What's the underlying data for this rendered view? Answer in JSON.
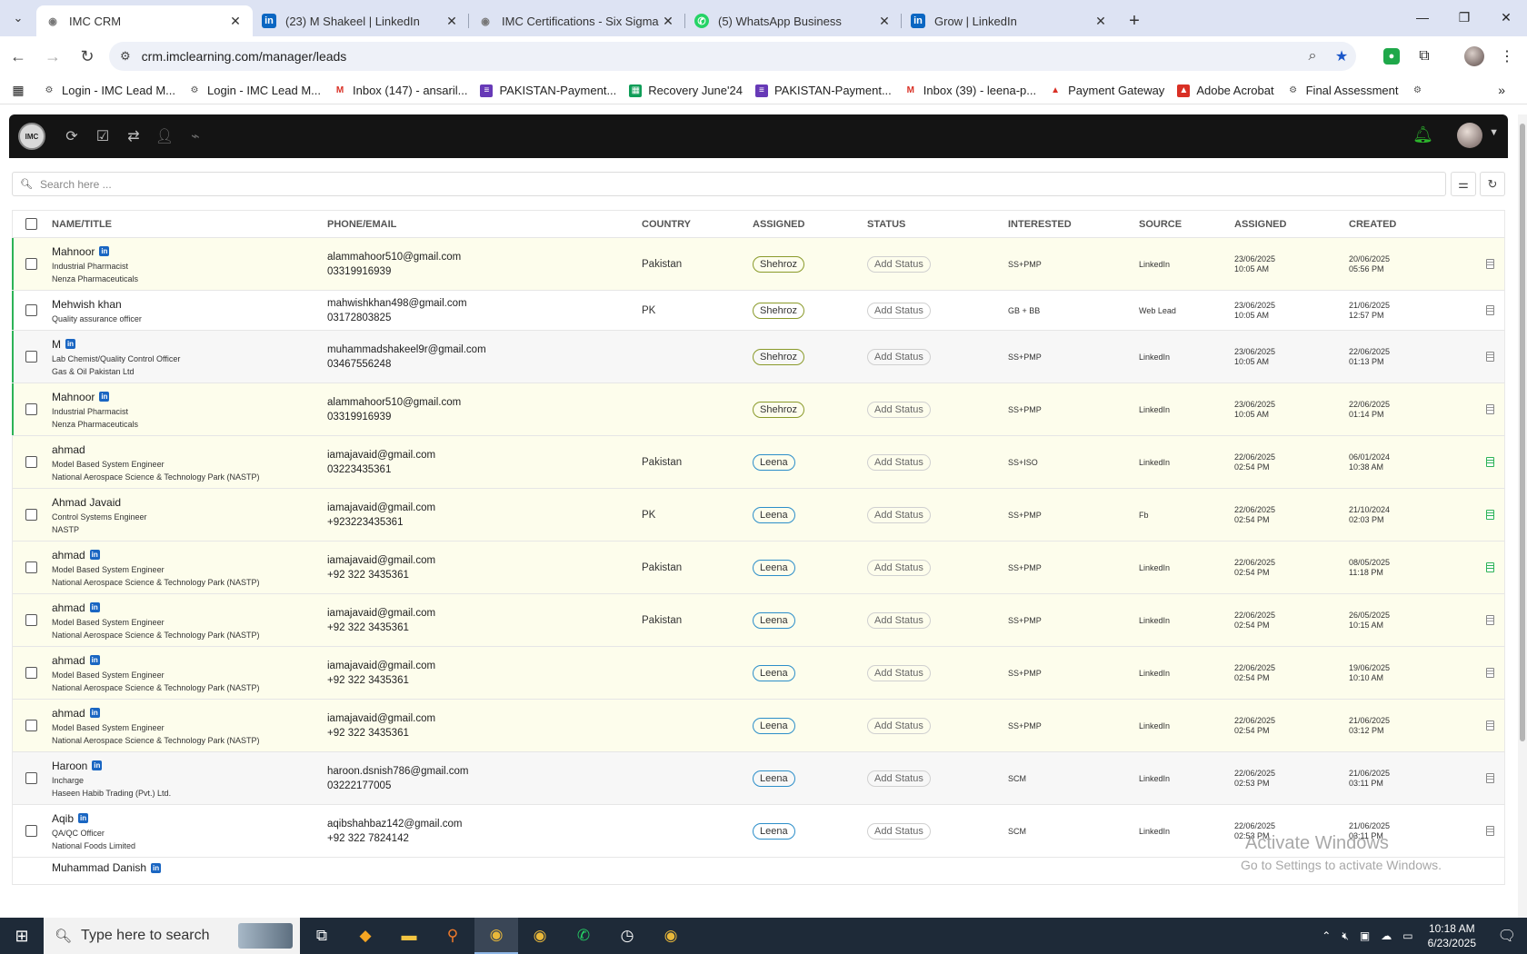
{
  "browser": {
    "tabs": [
      {
        "title": "IMC CRM",
        "icon": "imc-icon",
        "active": true
      },
      {
        "title": "(23) M Shakeel | LinkedIn",
        "icon": "linkedin-icon",
        "active": false
      },
      {
        "title": "IMC Certifications - Six Sigma G",
        "icon": "imc-icon",
        "active": false
      },
      {
        "title": "(5) WhatsApp Business",
        "icon": "whatsapp-icon",
        "active": false
      },
      {
        "title": "Grow | LinkedIn",
        "icon": "linkedin-icon",
        "active": false
      }
    ],
    "url": "crm.imclearning.com/manager/leads",
    "bookmarks": [
      {
        "label": "Login - IMC Lead M...",
        "icon": "imc-icon"
      },
      {
        "label": "Login - IMC Lead M...",
        "icon": "imc-icon"
      },
      {
        "label": "Inbox (147) - ansaril...",
        "icon": "gmail-icon"
      },
      {
        "label": "PAKISTAN-Payment...",
        "icon": "forms-icon"
      },
      {
        "label": "Recovery June'24",
        "icon": "sheets-icon"
      },
      {
        "label": "PAKISTAN-Payment...",
        "icon": "forms-icon"
      },
      {
        "label": "Inbox (39) - leena-p...",
        "icon": "gmail-icon"
      },
      {
        "label": "Payment Gateway",
        "icon": "gateway-icon"
      },
      {
        "label": "Adobe Acrobat",
        "icon": "acrobat-icon"
      },
      {
        "label": "Final Assessment",
        "icon": "imc-icon"
      }
    ]
  },
  "app": {
    "logo_text": "IMC",
    "search_placeholder": "Search here ..."
  },
  "table": {
    "headers": [
      "NAME/TITLE",
      "PHONE/EMAIL",
      "COUNTRY",
      "ASSIGNED",
      "STATUS",
      "INTERESTED",
      "SOURCE",
      "ASSIGNED",
      "CREATED"
    ],
    "rows": [
      {
        "name": "Mahnoor",
        "linkedin": true,
        "title": "Industrial Pharmacist",
        "company": "Nenza Pharmaceuticals",
        "email": "alammahoor510@gmail.com",
        "phone": "03319916939",
        "country": "Pakistan",
        "assigned": "Shehroz",
        "status": "Add Status",
        "interested": "SS+PMP",
        "source": "LinkedIn",
        "assigned_date": "23/06/2025",
        "assigned_time": "10:05 AM",
        "created_date": "20/06/2025",
        "created_time": "05:56 PM",
        "bg": "yellow",
        "mark": true,
        "doc": "grey"
      },
      {
        "name": "Mehwish khan",
        "linkedin": false,
        "title": "Quality assurance officer",
        "company": "",
        "email": "mahwishkhan498@gmail.com",
        "phone": "03172803825",
        "country": "PK",
        "assigned": "Shehroz",
        "status": "Add Status",
        "interested": "GB + BB",
        "source": "Web Lead",
        "assigned_date": "23/06/2025",
        "assigned_time": "10:05 AM",
        "created_date": "21/06/2025",
        "created_time": "12:57 PM",
        "bg": "white",
        "mark": true,
        "doc": "grey"
      },
      {
        "name": "M",
        "linkedin": true,
        "title": "Lab Chemist/Quality Control Officer",
        "company": "Gas & Oil Pakistan Ltd",
        "email": "muhammadshakeel9r@gmail.com",
        "phone": "03467556248",
        "country": "",
        "assigned": "Shehroz",
        "status": "Add Status",
        "interested": "SS+PMP",
        "source": "LinkedIn",
        "assigned_date": "23/06/2025",
        "assigned_time": "10:05 AM",
        "created_date": "22/06/2025",
        "created_time": "01:13 PM",
        "bg": "grey",
        "mark": true,
        "doc": "grey"
      },
      {
        "name": "Mahnoor",
        "linkedin": true,
        "title": "Industrial Pharmacist",
        "company": "Nenza Pharmaceuticals",
        "email": "alammahoor510@gmail.com",
        "phone": "03319916939",
        "country": "",
        "assigned": "Shehroz",
        "status": "Add Status",
        "interested": "SS+PMP",
        "source": "LinkedIn",
        "assigned_date": "23/06/2025",
        "assigned_time": "10:05 AM",
        "created_date": "22/06/2025",
        "created_time": "01:14 PM",
        "bg": "yellow",
        "mark": true,
        "doc": "grey"
      },
      {
        "name": "ahmad",
        "linkedin": false,
        "title": "Model Based System Engineer",
        "company": "National Aerospace Science & Technology Park (NASTP)",
        "email": "iamajavaid@gmail.com",
        "phone": "03223435361",
        "country": "Pakistan",
        "assigned": "Leena",
        "status": "Add Status",
        "interested": "SS+ISO",
        "source": "LinkedIn",
        "assigned_date": "22/06/2025",
        "assigned_time": "02:54 PM",
        "created_date": "06/01/2024",
        "created_time": "10:38 AM",
        "bg": "yellow",
        "mark": false,
        "doc": "green"
      },
      {
        "name": "Ahmad Javaid",
        "linkedin": false,
        "title": "Control Systems Engineer",
        "company": "NASTP",
        "email": "iamajavaid@gmail.com",
        "phone": "+923223435361",
        "country": "PK",
        "assigned": "Leena",
        "status": "Add Status",
        "interested": "SS+PMP",
        "source": "Fb",
        "assigned_date": "22/06/2025",
        "assigned_time": "02:54 PM",
        "created_date": "21/10/2024",
        "created_time": "02:03 PM",
        "bg": "yellow",
        "mark": false,
        "doc": "green"
      },
      {
        "name": "ahmad",
        "linkedin": true,
        "title": "Model Based System Engineer",
        "company": "National Aerospace Science & Technology Park (NASTP)",
        "email": "iamajavaid@gmail.com",
        "phone": "+92 322 3435361",
        "country": "Pakistan",
        "assigned": "Leena",
        "status": "Add Status",
        "interested": "SS+PMP",
        "source": "LinkedIn",
        "assigned_date": "22/06/2025",
        "assigned_time": "02:54 PM",
        "created_date": "08/05/2025",
        "created_time": "11:18 PM",
        "bg": "yellow",
        "mark": false,
        "doc": "green"
      },
      {
        "name": "ahmad",
        "linkedin": true,
        "title": "Model Based System Engineer",
        "company": "National Aerospace Science & Technology Park (NASTP)",
        "email": "iamajavaid@gmail.com",
        "phone": "+92 322 3435361",
        "country": "Pakistan",
        "assigned": "Leena",
        "status": "Add Status",
        "interested": "SS+PMP",
        "source": "LinkedIn",
        "assigned_date": "22/06/2025",
        "assigned_time": "02:54 PM",
        "created_date": "26/05/2025",
        "created_time": "10:15 AM",
        "bg": "yellow",
        "mark": false,
        "doc": "grey"
      },
      {
        "name": "ahmad",
        "linkedin": true,
        "title": "Model Based System Engineer",
        "company": "National Aerospace Science & Technology Park (NASTP)",
        "email": "iamajavaid@gmail.com",
        "phone": "+92 322 3435361",
        "country": "",
        "assigned": "Leena",
        "status": "Add Status",
        "interested": "SS+PMP",
        "source": "LinkedIn",
        "assigned_date": "22/06/2025",
        "assigned_time": "02:54 PM",
        "created_date": "19/06/2025",
        "created_time": "10:10 AM",
        "bg": "yellow",
        "mark": false,
        "doc": "grey"
      },
      {
        "name": "ahmad",
        "linkedin": true,
        "title": "Model Based System Engineer",
        "company": "National Aerospace Science & Technology Park (NASTP)",
        "email": "iamajavaid@gmail.com",
        "phone": "+92 322 3435361",
        "country": "",
        "assigned": "Leena",
        "status": "Add Status",
        "interested": "SS+PMP",
        "source": "LinkedIn",
        "assigned_date": "22/06/2025",
        "assigned_time": "02:54 PM",
        "created_date": "21/06/2025",
        "created_time": "03:12 PM",
        "bg": "yellow",
        "mark": false,
        "doc": "grey"
      },
      {
        "name": "Haroon",
        "linkedin": true,
        "title": "Incharge",
        "company": "Haseen Habib Trading (Pvt.) Ltd.",
        "email": "haroon.dsnish786@gmail.com",
        "phone": "03222177005",
        "country": "",
        "assigned": "Leena",
        "status": "Add Status",
        "interested": "SCM",
        "source": "LinkedIn",
        "assigned_date": "22/06/2025",
        "assigned_time": "02:53 PM",
        "created_date": "21/06/2025",
        "created_time": "03:11 PM",
        "bg": "grey",
        "mark": false,
        "doc": "grey"
      },
      {
        "name": "Aqib",
        "linkedin": true,
        "title": "QA/QC Officer",
        "company": "National Foods Limited",
        "email": "aqibshahbaz142@gmail.com",
        "phone": "+92 322 7824142",
        "country": "",
        "assigned": "Leena",
        "status": "Add Status",
        "interested": "SCM",
        "source": "LinkedIn",
        "assigned_date": "22/06/2025",
        "assigned_time": "02:53 PM",
        "created_date": "21/06/2025",
        "created_time": "03:11 PM",
        "bg": "white",
        "mark": false,
        "doc": "grey"
      },
      {
        "name": "Muhammad Danish",
        "linkedin": true,
        "title": "",
        "company": "",
        "email": "",
        "phone": "",
        "country": "",
        "assigned": "",
        "status": "",
        "interested": "",
        "source": "",
        "assigned_date": "",
        "assigned_time": "",
        "created_date": "",
        "created_time": "",
        "bg": "white",
        "mark": false,
        "doc": "none"
      }
    ]
  },
  "watermark": {
    "line1": "Activate Windows",
    "line2": "Go to Settings to activate Windows."
  },
  "taskbar": {
    "search_placeholder": "Type here to search",
    "time": "10:18 AM",
    "date": "6/23/2025"
  }
}
